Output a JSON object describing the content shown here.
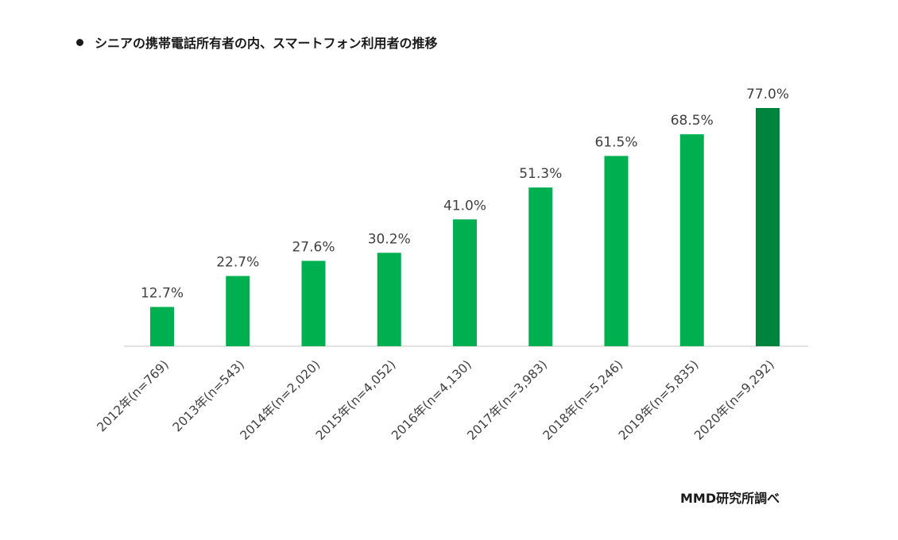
{
  "title": "シニアの携帯電話所有者の内、スマートフォン利用者の推移",
  "source": "MMD研究所調べ",
  "colors": {
    "bar": "#00b050",
    "bar_highlight": "#00843d",
    "axis": "#d9d9d9",
    "text": "#404040"
  },
  "chart_data": {
    "type": "bar",
    "title": "シニアの携帯電話所有者の内、スマートフォン利用者の推移",
    "xlabel": "",
    "ylabel": "",
    "ylim": [
      0,
      80
    ],
    "unit": "%",
    "categories": [
      "2012年(n=769)",
      "2013年(n=543)",
      "2014年(n=2,020)",
      "2015年(n=4,052)",
      "2016年(n=4,130)",
      "2017年(n=3,983)",
      "2018年(n=5,246)",
      "2019年(n=5,835)",
      "2020年(n=9,292)"
    ],
    "values": [
      12.7,
      22.7,
      27.6,
      30.2,
      41.0,
      51.3,
      61.5,
      68.5,
      77.0
    ],
    "value_labels": [
      "12.7%",
      "22.7%",
      "27.6%",
      "30.2%",
      "41.0%",
      "51.3%",
      "61.5%",
      "68.5%",
      "77.0%"
    ],
    "highlight_index": 8,
    "grid": false,
    "legend": "none"
  }
}
